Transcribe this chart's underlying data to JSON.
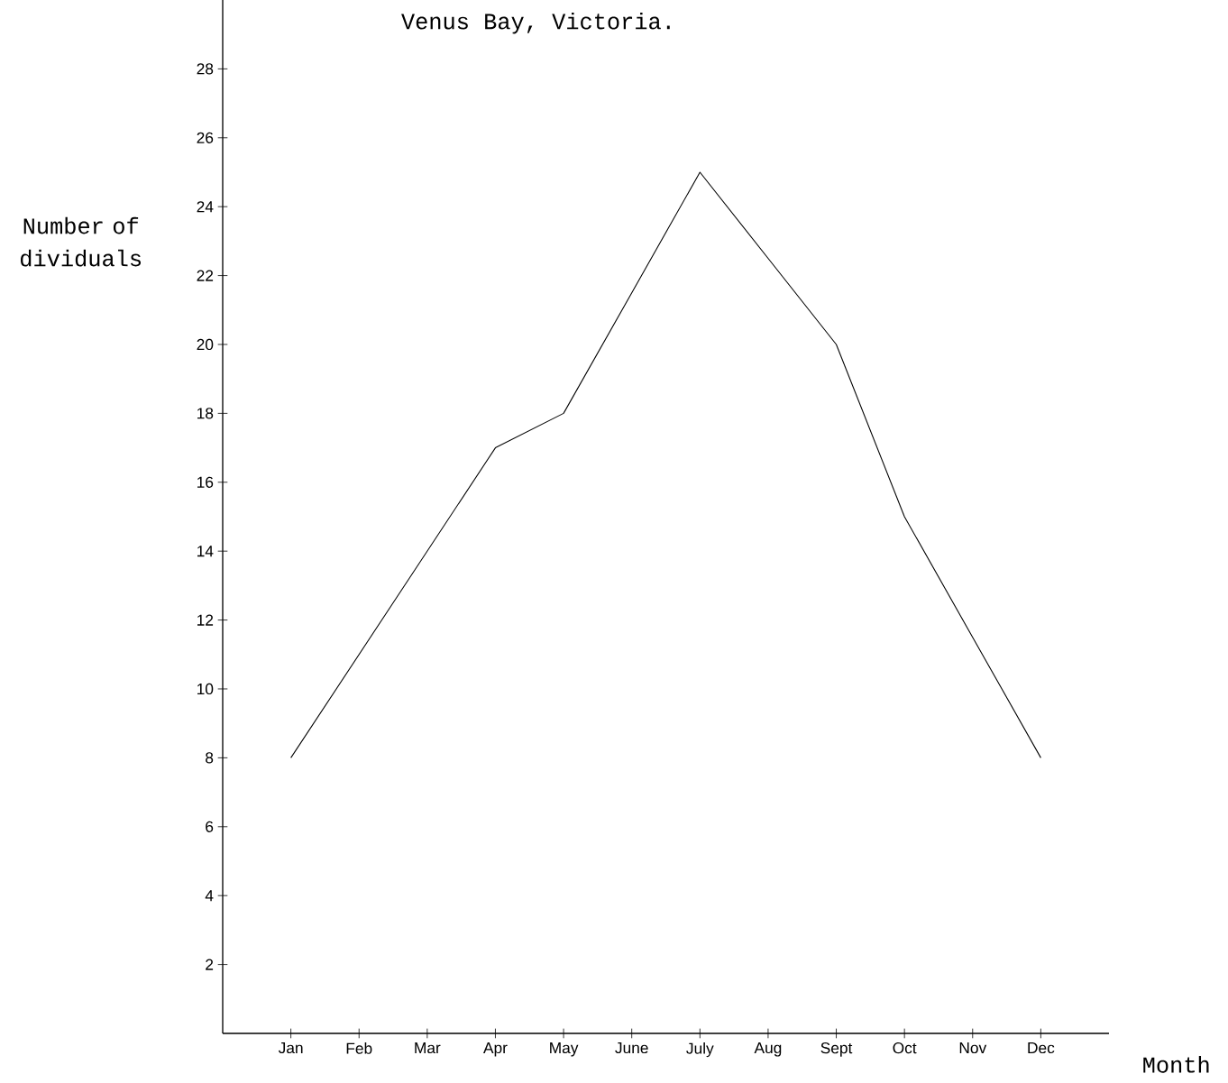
{
  "chart_data": {
    "type": "line",
    "title": "Venus Bay, Victoria.",
    "xlabel": "Month",
    "ylabel": "Number of dividuals",
    "categories": [
      "Jan",
      "Feb",
      "Mar",
      "Apr",
      "May",
      "June",
      "July",
      "Aug",
      "Sept",
      "Oct",
      "Nov",
      "Dec"
    ],
    "values": [
      8,
      11,
      14,
      17,
      18,
      21.5,
      25,
      22.5,
      20,
      15,
      11.5,
      8
    ],
    "color": "#000000",
    "marker": "none",
    "line_style": "solid",
    "grid": false,
    "ylim": [
      0,
      30
    ],
    "yticks": [
      2,
      4,
      6,
      8,
      10,
      12,
      14,
      16,
      18,
      20,
      22,
      24,
      26,
      28
    ]
  }
}
